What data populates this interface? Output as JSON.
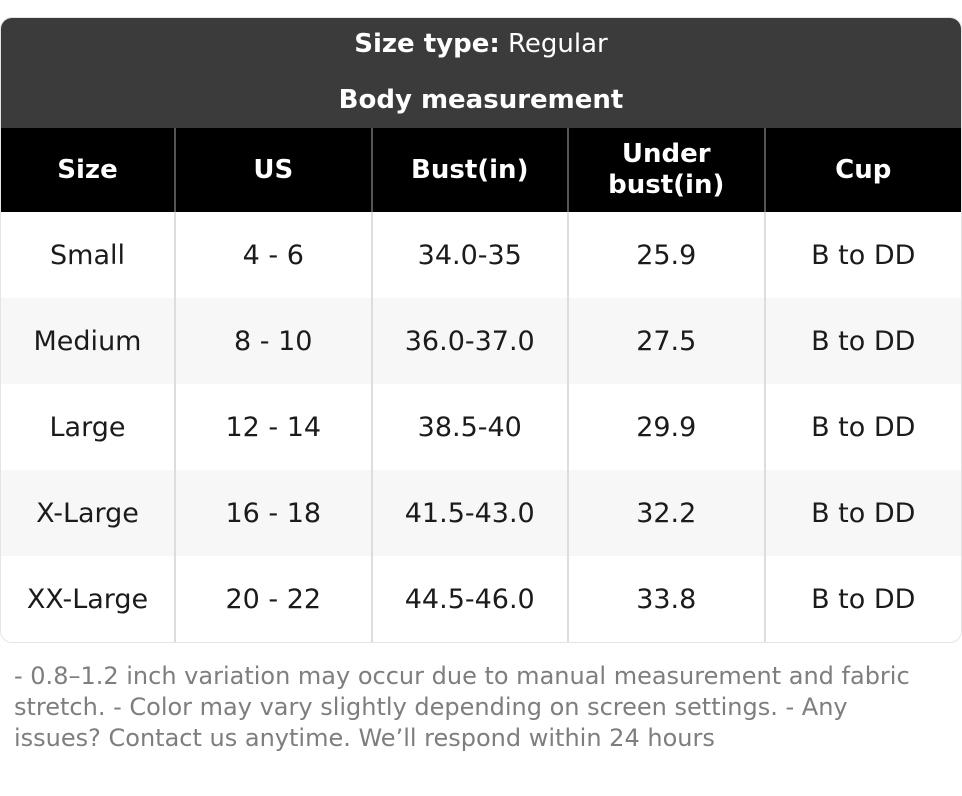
{
  "card": {
    "size_type_label": "Size type:",
    "size_type_value": "Regular",
    "subtitle": "Body measurement"
  },
  "table": {
    "columns": [
      "Size",
      "US",
      "Bust(in)",
      "Under bust(in)",
      "Cup"
    ],
    "rows": [
      [
        "Small",
        "4 - 6",
        "34.0-35",
        "25.9",
        "B to DD"
      ],
      [
        "Medium",
        "8 - 10",
        "36.0-37.0",
        "27.5",
        "B to DD"
      ],
      [
        "Large",
        "12 - 14",
        "38.5-40",
        "29.9",
        "B to DD"
      ],
      [
        "X-Large",
        "16 - 18",
        "41.5-43.0",
        "32.2",
        "B to DD"
      ],
      [
        "XX-Large",
        "20 - 22",
        "44.5-46.0",
        "33.8",
        "B to DD"
      ]
    ]
  },
  "footer": {
    "note": "- 0.8–1.2 inch variation may occur due to manual measurement and fabric stretch. - Color may vary slightly depending on screen settings. - Any issues? Contact us anytime. We’ll respond within 24 hours"
  },
  "colors": {
    "header_bg": "#3b3b3b",
    "header_text": "#ffffff",
    "table_header_bg": "#000000",
    "table_header_divider": "#555555",
    "row_alt_bg": "#f7f7f7",
    "body_divider": "#dddddd",
    "cell_text": "#1b1b1b",
    "note_text": "#7e7e7e",
    "card_border": "#e4e4e4"
  }
}
